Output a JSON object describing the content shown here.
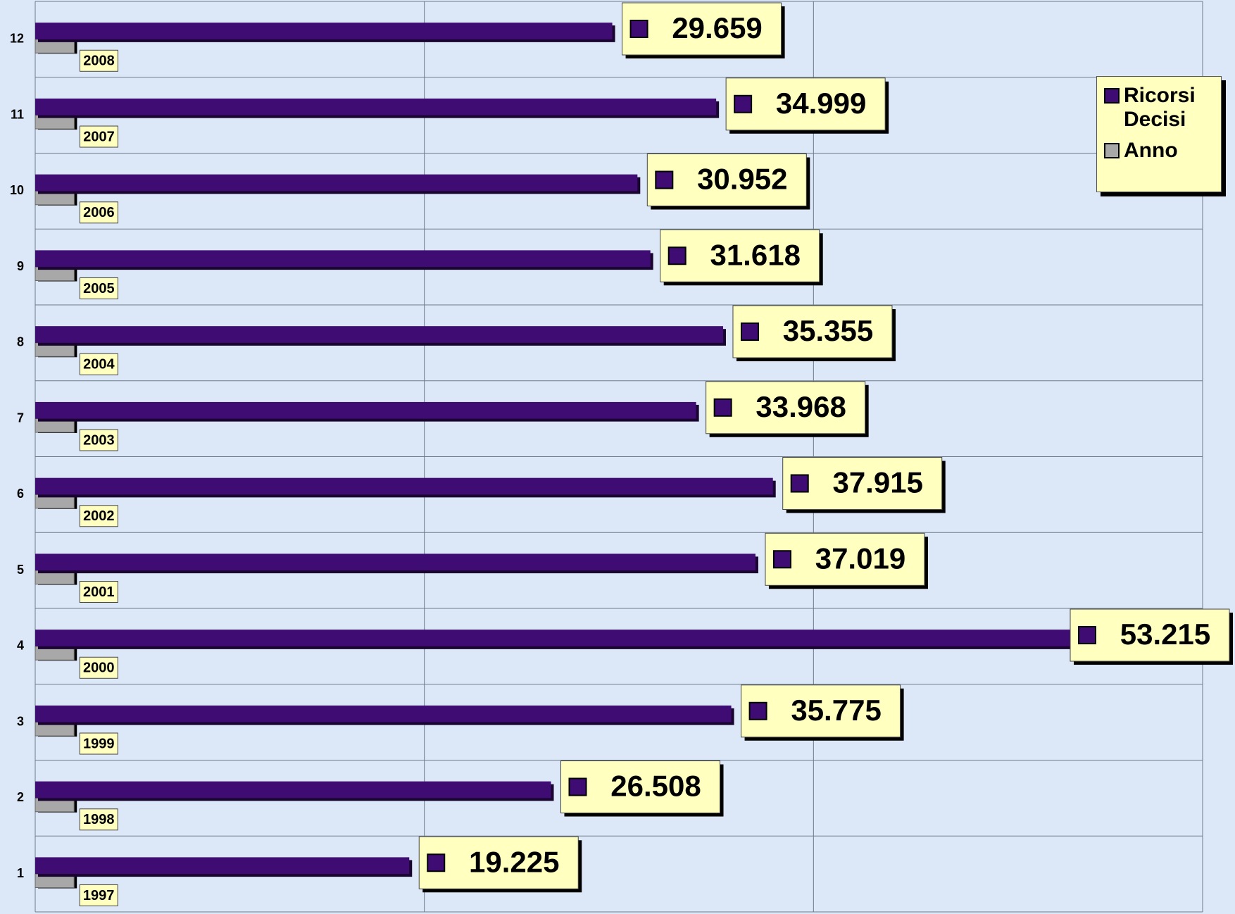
{
  "chart_data": {
    "type": "bar",
    "orientation": "horizontal",
    "categories": [
      "1",
      "2",
      "3",
      "4",
      "5",
      "6",
      "7",
      "8",
      "9",
      "10",
      "11",
      "12"
    ],
    "series": [
      {
        "name": "Ricorsi Decisi",
        "color": "#3f0c73",
        "values": [
          19225,
          26508,
          35775,
          53215,
          37019,
          37915,
          33968,
          35355,
          31618,
          30952,
          34999,
          29659
        ],
        "value_labels": [
          "19.225",
          "26.508",
          "35.775",
          "53.215",
          "37.019",
          "37.915",
          "33.968",
          "35.355",
          "31.618",
          "30.952",
          "34.999",
          "29.659"
        ]
      },
      {
        "name": "Anno",
        "color": "#a8a8a8",
        "values": [
          1997,
          1998,
          1999,
          2000,
          2001,
          2002,
          2003,
          2004,
          2005,
          2006,
          2007,
          2008
        ]
      }
    ],
    "xlim": [
      0,
      60000
    ],
    "xticks": [
      0,
      20000,
      40000,
      60000
    ],
    "grid": true,
    "legend": "upper right"
  }
}
